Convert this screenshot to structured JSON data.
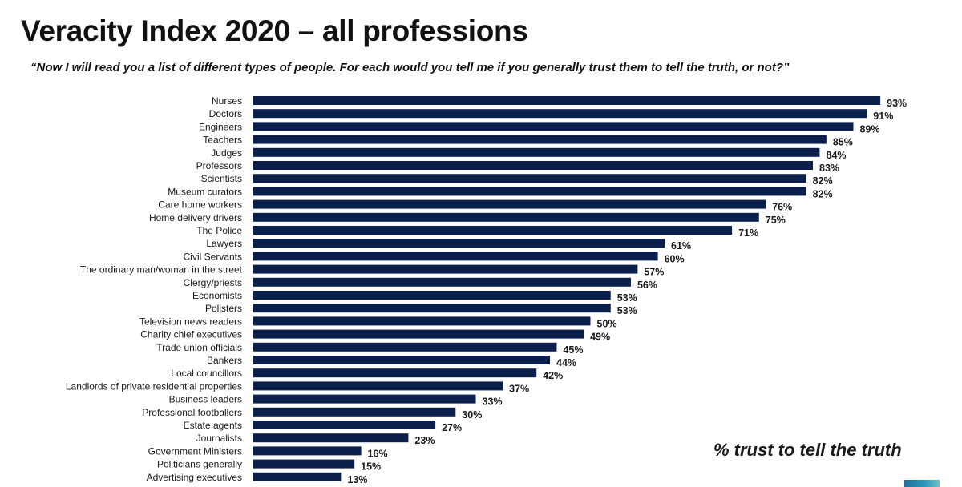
{
  "header": {
    "title": "Veracity Index 2020 – all professions",
    "subtitle": "“Now I will read you a list of different types of people. For each would you tell me if you generally trust them to tell the truth, or not?”"
  },
  "annotation": "% trust to tell the truth",
  "colors": {
    "bar": "#0b1f4b",
    "text": "#1a1a1a",
    "background": "#ffffff"
  },
  "chart_data": {
    "type": "bar",
    "orientation": "horizontal",
    "title": "Veracity Index 2020 – all professions",
    "xlabel": "",
    "ylabel": "",
    "xlim": [
      0,
      100
    ],
    "grid": false,
    "legend": "none",
    "value_suffix": "%",
    "categories": [
      "Nurses",
      "Doctors",
      "Engineers",
      "Teachers",
      "Judges",
      "Professors",
      "Scientists",
      "Museum curators",
      "Care home workers",
      "Home delivery drivers",
      "The Police",
      "Lawyers",
      "Civil Servants",
      "The ordinary man/woman in the street",
      "Clergy/priests",
      "Economists",
      "Pollsters",
      "Television news readers",
      "Charity chief executives",
      "Trade union officials",
      "Bankers",
      "Local councillors",
      "Landlords of private residential properties",
      "Business leaders",
      "Professional footballers",
      "Estate agents",
      "Journalists",
      "Government Ministers",
      "Politicians generally",
      "Advertising executives"
    ],
    "values": [
      93,
      91,
      89,
      85,
      84,
      83,
      82,
      82,
      76,
      75,
      71,
      61,
      60,
      57,
      56,
      53,
      53,
      50,
      49,
      45,
      44,
      42,
      37,
      33,
      30,
      27,
      23,
      16,
      15,
      13
    ]
  }
}
